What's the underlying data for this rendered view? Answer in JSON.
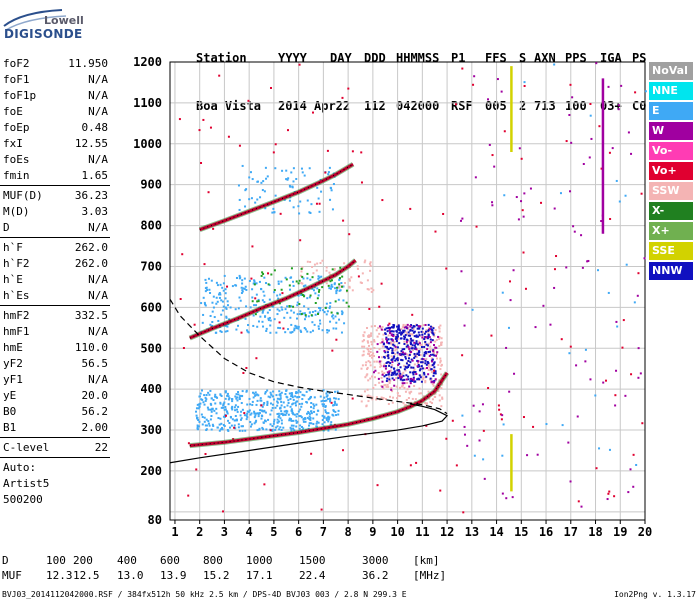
{
  "logo": {
    "line1": "Lowell",
    "line2": "DIGISONDE"
  },
  "header": {
    "row1": [
      "Station",
      "YYYY",
      "DAY",
      "DDD",
      "HHMMSS",
      "P1",
      "FFS",
      "S",
      "AXN",
      "PPS",
      "IGA",
      "PS"
    ],
    "row2": [
      "Boa Vista",
      "2014",
      "Apr22",
      "112",
      "042000",
      "RSF",
      "005",
      "2",
      "713",
      "100",
      "03+",
      "C0"
    ]
  },
  "params": {
    "group1": [
      {
        "k": "foF2",
        "v": "11.950"
      },
      {
        "k": "foF1",
        "v": "N/A"
      },
      {
        "k": "foF1p",
        "v": "N/A"
      },
      {
        "k": "foE",
        "v": "N/A"
      },
      {
        "k": "foEp",
        "v": "0.48"
      },
      {
        "k": "fxI",
        "v": "12.55"
      },
      {
        "k": "foEs",
        "v": "N/A"
      },
      {
        "k": "fmin",
        "v": "1.65"
      }
    ],
    "group2": [
      {
        "k": "MUF(D)",
        "v": "36.23"
      },
      {
        "k": "M(D)",
        "v": "3.03"
      },
      {
        "k": "D",
        "v": "N/A"
      }
    ],
    "group3": [
      {
        "k": "h`F",
        "v": "262.0"
      },
      {
        "k": "h`F2",
        "v": "262.0"
      },
      {
        "k": "h`E",
        "v": "N/A"
      },
      {
        "k": "h`Es",
        "v": "N/A"
      }
    ],
    "group4": [
      {
        "k": "hmF2",
        "v": "332.5"
      },
      {
        "k": "hmF1",
        "v": "N/A"
      },
      {
        "k": "hmE",
        "v": "110.0"
      },
      {
        "k": "yF2",
        "v": "56.5"
      },
      {
        "k": "yF1",
        "v": "N/A"
      },
      {
        "k": "yE",
        "v": "20.0"
      },
      {
        "k": "B0",
        "v": "56.2"
      },
      {
        "k": "B1",
        "v": "2.00"
      }
    ],
    "group5": [
      {
        "k": "C-level",
        "v": "22"
      }
    ],
    "autoscale": [
      "Auto:",
      "Artist5",
      "500200"
    ]
  },
  "legend": [
    {
      "label": "NoVal",
      "color": "#a0a0a0"
    },
    {
      "label": "NNE",
      "color": "#00e5ee"
    },
    {
      "label": "E",
      "color": "#3fa9f5"
    },
    {
      "label": "W",
      "color": "#a000a0"
    },
    {
      "label": "Vo-",
      "color": "#ff3cb4"
    },
    {
      "label": "Vo+",
      "color": "#e00030"
    },
    {
      "label": "SSW",
      "color": "#f4b4b4"
    },
    {
      "label": "X-",
      "color": "#208020"
    },
    {
      "label": "X+",
      "color": "#70b050"
    },
    {
      "label": "SSE",
      "color": "#d2d200"
    },
    {
      "label": "NNW",
      "color": "#1010c0"
    }
  ],
  "footer": {
    "d_row": {
      "label": "D",
      "values": [
        "100",
        "200",
        "400",
        "600",
        "800",
        "1000",
        "1500",
        "3000"
      ],
      "unit": "[km]"
    },
    "muf_row": {
      "label": "MUF",
      "values": [
        "12.3",
        "12.5",
        "13.0",
        "13.9",
        "15.2",
        "17.1",
        "22.4",
        "36.2"
      ],
      "unit": "[MHz]"
    },
    "file_info": "BVJ03_2014112042000.RSF / 384fx512h 50 kHz 2.5 km / DPS-4D BVJ03 003 / 2.8 N 299.3 E",
    "version": "Ion2Png v. 1.3.17"
  },
  "chart_data": {
    "type": "scatter",
    "xlim": [
      0.8,
      20
    ],
    "ylim": [
      80,
      1200
    ],
    "xticks": [
      1,
      2,
      3,
      4,
      5,
      6,
      7,
      8,
      9,
      10,
      11,
      12,
      13,
      14,
      15,
      16,
      17,
      18,
      19,
      20
    ],
    "yticks": [
      80,
      100,
      200,
      300,
      400,
      500,
      600,
      700,
      800,
      900,
      1000,
      1100,
      1200
    ],
    "ytick_labels": [
      80,
      200,
      300,
      400,
      500,
      600,
      700,
      800,
      900,
      1000,
      1100,
      1200
    ],
    "grid": true,
    "traces": [
      {
        "name": "F2 1st hop",
        "color": "#c00030",
        "x": [
          1.6,
          3,
          4,
          5,
          6,
          7,
          8,
          9,
          10,
          10.5,
          11,
          11.5,
          12
        ],
        "y": [
          262,
          270,
          278,
          286,
          294,
          304,
          314,
          328,
          345,
          357,
          372,
          395,
          440
        ]
      },
      {
        "name": "F2 2nd hop",
        "color": "#c00030",
        "x": [
          1.6,
          2.5,
          3.5,
          4.5,
          5.5,
          6.5,
          7.5,
          8,
          8.3
        ],
        "y": [
          525,
          548,
          572,
          598,
          622,
          650,
          680,
          700,
          715
        ]
      },
      {
        "name": "F2 3rd hop",
        "color": "#c00030",
        "x": [
          2,
          3,
          4,
          5,
          6,
          7,
          7.5,
          8.2
        ],
        "y": [
          790,
          812,
          835,
          858,
          882,
          910,
          925,
          950
        ]
      }
    ],
    "profile_solid": {
      "x": [
        0.8,
        2,
        4,
        6,
        8,
        10,
        11,
        11.8,
        12,
        11.5,
        11,
        10.5
      ],
      "y": [
        220,
        232,
        250,
        268,
        285,
        300,
        310,
        322,
        335,
        350,
        358,
        364
      ]
    },
    "profile_dashed": {
      "x": [
        0.8,
        1.2,
        2,
        3,
        4,
        5,
        6,
        7,
        8,
        9,
        10,
        11,
        11.7,
        12
      ],
      "y": [
        620,
        580,
        530,
        475,
        440,
        418,
        405,
        395,
        387,
        378,
        370,
        362,
        352,
        340
      ]
    },
    "clusters": [
      {
        "color": "#3fa9f5",
        "xmin": 1.8,
        "xmax": 7.6,
        "ymin": 300,
        "ymax": 400,
        "n": 520
      },
      {
        "color": "#3fa9f5",
        "xmin": 2.0,
        "xmax": 7.8,
        "ymin": 540,
        "ymax": 680,
        "n": 320
      },
      {
        "color": "#3fa9f5",
        "xmin": 3.5,
        "xmax": 7.5,
        "ymin": 830,
        "ymax": 950,
        "n": 80
      },
      {
        "color": "#f4b4b4",
        "xmin": 8.5,
        "xmax": 11.8,
        "ymin": 360,
        "ymax": 560,
        "n": 380
      },
      {
        "color": "#f4b4b4",
        "xmin": 6.0,
        "xmax": 9.0,
        "ymin": 640,
        "ymax": 720,
        "n": 60
      },
      {
        "color": "#1010c0",
        "xmin": 9.4,
        "xmax": 11.5,
        "ymin": 420,
        "ymax": 560,
        "n": 320
      },
      {
        "color": "#a000a0",
        "xmin": 9.0,
        "xmax": 11.6,
        "ymin": 400,
        "ymax": 560,
        "n": 90
      },
      {
        "color": "#20a020",
        "xmin": 4.0,
        "xmax": 8.0,
        "ymin": 580,
        "ymax": 700,
        "n": 60
      },
      {
        "color": "#e00030",
        "xmin": 1.0,
        "xmax": 20.0,
        "ymin": 100,
        "ymax": 1200,
        "n": 140
      },
      {
        "color": "#a000a0",
        "xmin": 12.5,
        "xmax": 20.0,
        "ymin": 100,
        "ymax": 1200,
        "n": 90
      },
      {
        "color": "#3fa9f5",
        "xmin": 12.5,
        "xmax": 20.0,
        "ymin": 100,
        "ymax": 1200,
        "n": 30
      }
    ],
    "vertical_lines": [
      {
        "x": 14.6,
        "ymin": 980,
        "ymax": 1190,
        "color": "#d2d200"
      },
      {
        "x": 14.6,
        "ymin": 150,
        "ymax": 290,
        "color": "#d2d200"
      },
      {
        "x": 18.3,
        "ymin": 780,
        "ymax": 1160,
        "color": "#a000a0"
      }
    ]
  }
}
